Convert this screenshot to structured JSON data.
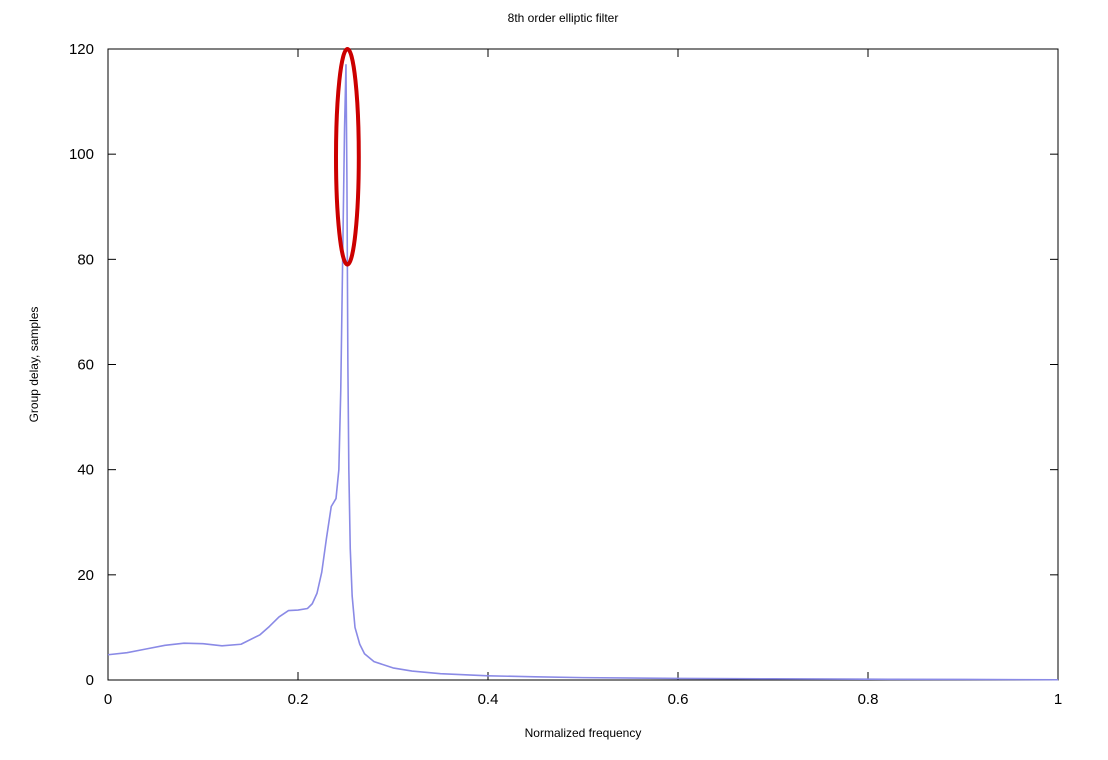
{
  "chart_data": {
    "type": "line",
    "title": "8th order elliptic filter",
    "xlabel": "Normalized frequency",
    "ylabel": "Group delay, samples",
    "xlim": [
      0,
      1
    ],
    "ylim": [
      0,
      120
    ],
    "xticks": [
      0,
      0.2,
      0.4,
      0.6,
      0.8,
      1
    ],
    "xtick_labels": [
      "0",
      "0.2",
      "0.4",
      "0.6",
      "0.8",
      "1"
    ],
    "yticks": [
      0,
      20,
      40,
      60,
      80,
      100,
      120
    ],
    "ytick_labels": [
      "0",
      "20",
      "40",
      "60",
      "80",
      "100",
      "120"
    ],
    "grid": false,
    "series": [
      {
        "color": "#8a8ae6",
        "x": [
          0,
          0.02,
          0.04,
          0.06,
          0.08,
          0.1,
          0.12,
          0.14,
          0.16,
          0.17,
          0.18,
          0.19,
          0.2,
          0.21,
          0.215,
          0.22,
          0.225,
          0.23,
          0.235,
          0.24,
          0.243,
          0.245,
          0.247,
          0.249,
          0.2505,
          0.2515,
          0.2525,
          0.2535,
          0.255,
          0.257,
          0.26,
          0.265,
          0.27,
          0.28,
          0.3,
          0.32,
          0.35,
          0.4,
          0.45,
          0.5,
          0.6,
          0.7,
          0.8,
          0.9,
          1.0
        ],
        "y": [
          4.8,
          5.2,
          5.9,
          6.6,
          7.0,
          6.9,
          6.5,
          6.8,
          8.6,
          10.2,
          12.0,
          13.2,
          13.3,
          13.6,
          14.5,
          16.5,
          20.5,
          27.0,
          33.0,
          34.5,
          40.0,
          55.0,
          80.0,
          105.0,
          117.0,
          95.0,
          60.0,
          40.0,
          25.0,
          16.0,
          10.0,
          6.8,
          5.0,
          3.5,
          2.3,
          1.7,
          1.2,
          0.8,
          0.6,
          0.45,
          0.3,
          0.22,
          0.15,
          0.1,
          0.05
        ]
      }
    ],
    "annotations": [
      {
        "type": "ellipse",
        "color": "#cc0000",
        "cx": 0.252,
        "cy": 99.5,
        "rx": 0.012,
        "ry": 20.5
      }
    ]
  }
}
